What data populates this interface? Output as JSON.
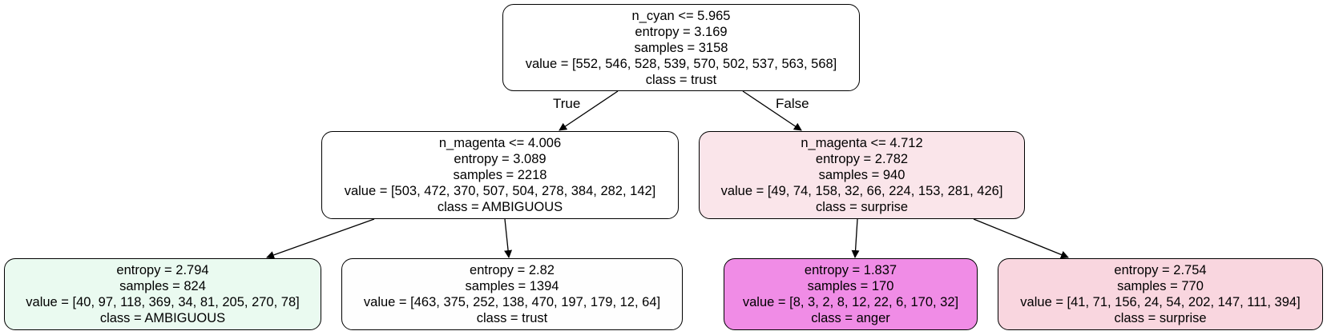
{
  "tree": {
    "root": {
      "split": "n_cyan <= 5.965",
      "entropy": "entropy = 3.169",
      "samples": "samples = 3158",
      "value": "value = [552, 546, 528, 539, 570, 502, 537, 563, 568]",
      "class": "class = trust",
      "fill": "#ffffff"
    },
    "left": {
      "split": "n_magenta <= 4.006",
      "entropy": "entropy = 3.089",
      "samples": "samples = 2218",
      "value": "value = [503, 472, 370, 507, 504, 278, 384, 282, 142]",
      "class": "class = AMBIGUOUS",
      "fill": "#ffffff"
    },
    "right": {
      "split": "n_magenta <= 4.712",
      "entropy": "entropy = 2.782",
      "samples": "samples = 940",
      "value": "value = [49, 74, 158, 32, 66, 224, 153, 281, 426]",
      "class": "class = surprise",
      "fill": "#fae5ea"
    },
    "leaf_ll": {
      "entropy": "entropy = 2.794",
      "samples": "samples = 824",
      "value": "value = [40, 97, 118, 369, 34, 81, 205, 270, 78]",
      "class": "class = AMBIGUOUS",
      "fill": "#eafaf0"
    },
    "leaf_lr": {
      "entropy": "entropy = 2.82",
      "samples": "samples = 1394",
      "value": "value = [463, 375, 252, 138, 470, 197, 179, 12, 64]",
      "class": "class = trust",
      "fill": "#fefefe"
    },
    "leaf_rl": {
      "entropy": "entropy = 1.837",
      "samples": "samples = 170",
      "value": "value = [8, 3, 2, 8, 12, 22, 6, 170, 32]",
      "class": "class = anger",
      "fill": "#f08ce6"
    },
    "leaf_rr": {
      "entropy": "entropy = 2.754",
      "samples": "samples = 770",
      "value": "value = [41, 71, 156, 24, 54, 202, 147, 111, 394]",
      "class": "class = surprise",
      "fill": "#f9d6df"
    }
  },
  "edge_labels": {
    "true_label": "True",
    "false_label": "False"
  }
}
